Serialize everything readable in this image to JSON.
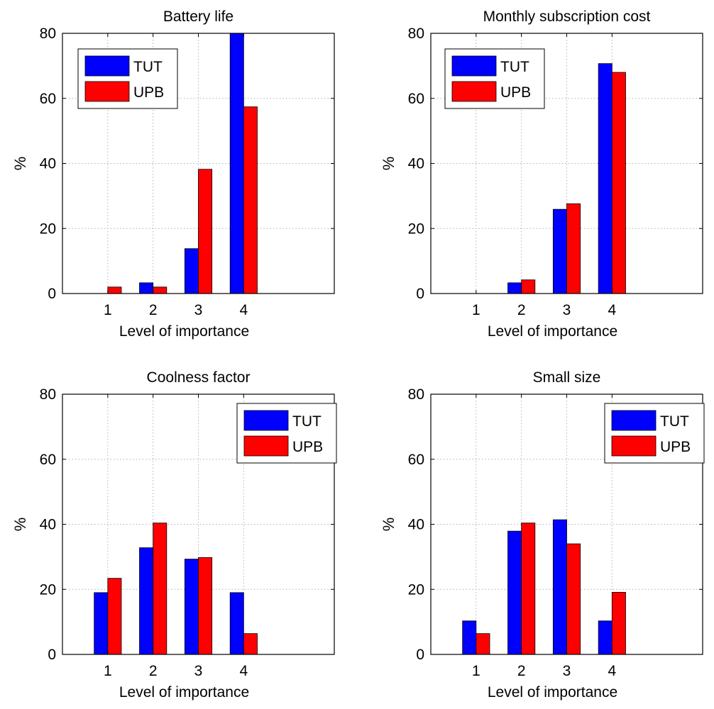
{
  "colors": {
    "TUT": "#0000ff",
    "UPB": "#ff0000"
  },
  "chart_data": [
    {
      "type": "bar",
      "title": "Battery life",
      "xlabel": "Level of importance",
      "ylabel": "%",
      "categories": [
        "1",
        "2",
        "3",
        "4"
      ],
      "xlim": [
        0,
        6
      ],
      "ylim": [
        0,
        80
      ],
      "yticks": [
        0,
        20,
        40,
        60,
        80
      ],
      "grid": true,
      "legend_position": "top-left",
      "series": [
        {
          "name": "TUT",
          "values": [
            0,
            3.3,
            13.8,
            80
          ]
        },
        {
          "name": "UPB",
          "values": [
            2.0,
            2.0,
            38.2,
            57.4
          ]
        }
      ]
    },
    {
      "type": "bar",
      "title": "Monthly subscription cost",
      "xlabel": "Level of importance",
      "ylabel": "%",
      "categories": [
        "1",
        "2",
        "3",
        "4"
      ],
      "xlim": [
        0,
        6
      ],
      "ylim": [
        0,
        80
      ],
      "yticks": [
        0,
        20,
        40,
        60,
        80
      ],
      "grid": true,
      "legend_position": "top-left",
      "series": [
        {
          "name": "TUT",
          "values": [
            0,
            3.3,
            25.9,
            70.7
          ]
        },
        {
          "name": "UPB",
          "values": [
            0,
            4.2,
            27.6,
            68.0
          ]
        }
      ]
    },
    {
      "type": "bar",
      "title": "Coolness factor",
      "xlabel": "Level of importance",
      "ylabel": "%",
      "categories": [
        "1",
        "2",
        "3",
        "4"
      ],
      "xlim": [
        0,
        6
      ],
      "ylim": [
        0,
        80
      ],
      "yticks": [
        0,
        20,
        40,
        60,
        80
      ],
      "grid": true,
      "legend_position": "top-right",
      "series": [
        {
          "name": "TUT",
          "values": [
            19.0,
            32.8,
            29.3,
            19.0
          ]
        },
        {
          "name": "UPB",
          "values": [
            23.4,
            40.4,
            29.8,
            6.4
          ]
        }
      ]
    },
    {
      "type": "bar",
      "title": "Small size",
      "xlabel": "Level of importance",
      "ylabel": "%",
      "categories": [
        "1",
        "2",
        "3",
        "4"
      ],
      "xlim": [
        0,
        6
      ],
      "ylim": [
        0,
        80
      ],
      "yticks": [
        0,
        20,
        40,
        60,
        80
      ],
      "grid": true,
      "legend_position": "top-right",
      "series": [
        {
          "name": "TUT",
          "values": [
            10.3,
            37.9,
            41.4,
            10.3
          ]
        },
        {
          "name": "UPB",
          "values": [
            6.4,
            40.4,
            34.0,
            19.1
          ]
        }
      ]
    }
  ]
}
